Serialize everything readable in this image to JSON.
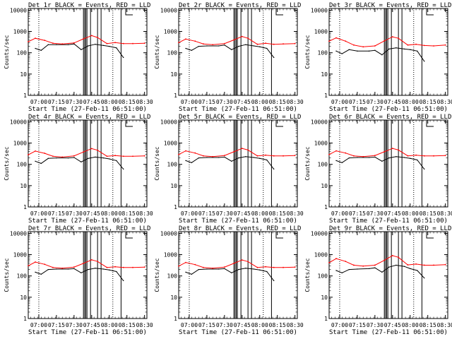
{
  "shared": {
    "xtick_labels": [
      "07:00",
      "07:15",
      "07:30",
      "07:45",
      "08:00",
      "08:15",
      "08:30"
    ],
    "ytick_labels": [
      "1",
      "10",
      "100",
      "1000",
      "10000"
    ],
    "ylabel": "Counts/sec",
    "xlabel": "Start Time (27-Feb-11 06:51:00)"
  },
  "chart_data": [
    {
      "type": "line",
      "title": "Det 1r BLACK = Events, RED = LLD",
      "xlabel": "Start Time (27-Feb-11 06:51:00)",
      "ylabel": "Counts/sec",
      "yscale": "log",
      "ylim": [
        1,
        12000
      ],
      "xlim": [
        "06:51",
        "08:32"
      ],
      "series": [
        {
          "name": "Events",
          "color": "#000000",
          "x": [
            "06:57",
            "07:02",
            "07:08",
            "07:15",
            "07:25",
            "07:30",
            "07:36",
            "07:42",
            "07:48",
            "07:55",
            "08:00",
            "08:06",
            "08:12"
          ],
          "values": [
            160,
            130,
            240,
            240,
            240,
            260,
            140,
            210,
            250,
            220,
            200,
            170,
            60
          ]
        },
        {
          "name": "LLD",
          "color": "#ff0000",
          "x": [
            "06:51",
            "06:57",
            "07:05",
            "07:12",
            "07:20",
            "07:30",
            "07:38",
            "07:45",
            "07:50",
            "07:58",
            "08:05",
            "08:12",
            "08:20",
            "08:30"
          ],
          "values": [
            330,
            480,
            380,
            280,
            260,
            290,
            450,
            640,
            520,
            270,
            300,
            270,
            270,
            280
          ]
        }
      ],
      "vlines_dotted": [
        "07:00",
        "08:03"
      ],
      "vlines_solid": [
        "07:38",
        "07:39",
        "07:40",
        "07:41",
        "07:44",
        "07:50",
        "07:53",
        "08:10"
      ]
    },
    {
      "type": "line",
      "title": "Det 2r BLACK = Events, RED = LLD",
      "xlabel": "Start Time (27-Feb-11 06:51:00)",
      "ylabel": "Counts/sec",
      "yscale": "log",
      "ylim": [
        1,
        12000
      ],
      "xlim": [
        "06:51",
        "08:32"
      ],
      "series": [
        {
          "name": "Events",
          "color": "#000000",
          "x": [
            "06:57",
            "07:02",
            "07:08",
            "07:15",
            "07:25",
            "07:30",
            "07:36",
            "07:42",
            "07:48",
            "07:55",
            "08:00",
            "08:06",
            "08:12"
          ],
          "values": [
            160,
            130,
            200,
            210,
            210,
            230,
            140,
            200,
            240,
            210,
            190,
            160,
            60
          ]
        },
        {
          "name": "LLD",
          "color": "#ff0000",
          "x": [
            "06:51",
            "06:57",
            "07:05",
            "07:12",
            "07:20",
            "07:30",
            "07:38",
            "07:45",
            "07:50",
            "07:58",
            "08:05",
            "08:12",
            "08:20",
            "08:30"
          ],
          "values": [
            300,
            440,
            350,
            260,
            240,
            270,
            400,
            580,
            480,
            250,
            280,
            250,
            260,
            270
          ]
        }
      ],
      "vlines_dotted": [
        "07:00",
        "08:03"
      ],
      "vlines_solid": [
        "07:38",
        "07:39",
        "07:40",
        "07:41",
        "07:44",
        "07:50",
        "07:53",
        "08:10"
      ]
    },
    {
      "type": "line",
      "title": "Det 3r BLACK = Events, RED = LLD",
      "xlabel": "Start Time (27-Feb-11 06:51:00)",
      "ylabel": "Counts/sec",
      "yscale": "log",
      "ylim": [
        1,
        12000
      ],
      "xlim": [
        "06:51",
        "08:32"
      ],
      "series": [
        {
          "name": "Events",
          "color": "#000000",
          "x": [
            "06:57",
            "07:02",
            "07:08",
            "07:15",
            "07:25",
            "07:30",
            "07:36",
            "07:42",
            "07:48",
            "07:55",
            "08:00",
            "08:06",
            "08:12"
          ],
          "values": [
            120,
            90,
            140,
            120,
            120,
            130,
            80,
            150,
            170,
            150,
            140,
            120,
            40
          ]
        },
        {
          "name": "LLD",
          "color": "#ff0000",
          "x": [
            "06:51",
            "06:57",
            "07:05",
            "07:12",
            "07:20",
            "07:30",
            "07:38",
            "07:45",
            "07:50",
            "07:58",
            "08:05",
            "08:12",
            "08:20",
            "08:30"
          ],
          "values": [
            350,
            500,
            350,
            230,
            190,
            210,
            360,
            560,
            480,
            230,
            250,
            220,
            210,
            230
          ]
        }
      ],
      "vlines_dotted": [
        "07:00",
        "08:03"
      ],
      "vlines_solid": [
        "07:38",
        "07:39",
        "07:40",
        "07:41",
        "07:44",
        "07:50",
        "07:53",
        "08:10"
      ]
    },
    {
      "type": "line",
      "title": "Det 4r BLACK = Events, RED = LLD",
      "xlabel": "Start Time (27-Feb-11 06:51:00)",
      "ylabel": "Counts/sec",
      "yscale": "log",
      "ylim": [
        1,
        12000
      ],
      "xlim": [
        "06:51",
        "08:32"
      ],
      "series": [
        {
          "name": "Events",
          "color": "#000000",
          "x": [
            "06:57",
            "07:02",
            "07:08",
            "07:15",
            "07:25",
            "07:30",
            "07:36",
            "07:42",
            "07:48",
            "07:55",
            "08:00",
            "08:06",
            "08:12"
          ],
          "values": [
            140,
            110,
            190,
            200,
            200,
            210,
            130,
            190,
            220,
            200,
            180,
            150,
            60
          ]
        },
        {
          "name": "LLD",
          "color": "#ff0000",
          "x": [
            "06:51",
            "06:57",
            "07:05",
            "07:12",
            "07:20",
            "07:30",
            "07:38",
            "07:45",
            "07:50",
            "07:58",
            "08:05",
            "08:12",
            "08:20",
            "08:30"
          ],
          "values": [
            280,
            420,
            330,
            240,
            220,
            250,
            380,
            550,
            460,
            240,
            260,
            240,
            240,
            250
          ]
        }
      ],
      "vlines_dotted": [
        "07:00",
        "08:03"
      ],
      "vlines_solid": [
        "07:38",
        "07:39",
        "07:40",
        "07:41",
        "07:44",
        "07:50",
        "07:53",
        "08:10"
      ]
    },
    {
      "type": "line",
      "title": "Det 5r BLACK = Events, RED = LLD",
      "xlabel": "Start Time (27-Feb-11 06:51:00)",
      "ylabel": "Counts/sec",
      "yscale": "log",
      "ylim": [
        1,
        12000
      ],
      "xlim": [
        "06:51",
        "08:32"
      ],
      "series": [
        {
          "name": "Events",
          "color": "#000000",
          "x": [
            "06:57",
            "07:02",
            "07:08",
            "07:15",
            "07:25",
            "07:30",
            "07:36",
            "07:42",
            "07:48",
            "07:55",
            "08:00",
            "08:06",
            "08:12"
          ],
          "values": [
            150,
            120,
            200,
            210,
            210,
            220,
            140,
            200,
            230,
            210,
            190,
            160,
            60
          ]
        },
        {
          "name": "LLD",
          "color": "#ff0000",
          "x": [
            "06:51",
            "06:57",
            "07:05",
            "07:12",
            "07:20",
            "07:30",
            "07:38",
            "07:45",
            "07:50",
            "07:58",
            "08:05",
            "08:12",
            "08:20",
            "08:30"
          ],
          "values": [
            290,
            430,
            340,
            250,
            230,
            260,
            390,
            560,
            470,
            250,
            270,
            250,
            250,
            260
          ]
        }
      ],
      "vlines_dotted": [
        "07:00",
        "08:03"
      ],
      "vlines_solid": [
        "07:38",
        "07:39",
        "07:40",
        "07:41",
        "07:44",
        "07:50",
        "07:53",
        "08:10"
      ]
    },
    {
      "type": "line",
      "title": "Det 6r BLACK = Events, RED = LLD",
      "xlabel": "Start Time (27-Feb-11 06:51:00)",
      "ylabel": "Counts/sec",
      "yscale": "log",
      "ylim": [
        1,
        12000
      ],
      "xlim": [
        "06:51",
        "08:32"
      ],
      "series": [
        {
          "name": "Events",
          "color": "#000000",
          "x": [
            "06:57",
            "07:02",
            "07:08",
            "07:15",
            "07:25",
            "07:30",
            "07:36",
            "07:42",
            "07:48",
            "07:55",
            "08:00",
            "08:06",
            "08:12"
          ],
          "values": [
            150,
            120,
            200,
            210,
            210,
            220,
            140,
            200,
            230,
            210,
            190,
            160,
            60
          ]
        },
        {
          "name": "LLD",
          "color": "#ff0000",
          "x": [
            "06:51",
            "06:57",
            "07:05",
            "07:12",
            "07:20",
            "07:30",
            "07:38",
            "07:45",
            "07:50",
            "07:58",
            "08:05",
            "08:12",
            "08:20",
            "08:30"
          ],
          "values": [
            290,
            430,
            340,
            250,
            230,
            260,
            390,
            560,
            470,
            250,
            270,
            250,
            250,
            260
          ]
        }
      ],
      "vlines_dotted": [
        "07:00",
        "08:03"
      ],
      "vlines_solid": [
        "07:38",
        "07:39",
        "07:40",
        "07:41",
        "07:44",
        "07:50",
        "07:53",
        "08:10"
      ]
    },
    {
      "type": "line",
      "title": "Det 7r BLACK = Events, RED = LLD",
      "xlabel": "Start Time (27-Feb-11 06:51:00)",
      "ylabel": "Counts/sec",
      "yscale": "log",
      "ylim": [
        1,
        12000
      ],
      "xlim": [
        "06:51",
        "08:32"
      ],
      "series": [
        {
          "name": "Events",
          "color": "#000000",
          "x": [
            "06:57",
            "07:02",
            "07:08",
            "07:15",
            "07:25",
            "07:30",
            "07:36",
            "07:42",
            "07:48",
            "07:55",
            "08:00",
            "08:06",
            "08:12"
          ],
          "values": [
            150,
            120,
            200,
            210,
            210,
            220,
            140,
            200,
            230,
            210,
            190,
            160,
            60
          ]
        },
        {
          "name": "LLD",
          "color": "#ff0000",
          "x": [
            "06:51",
            "06:57",
            "07:05",
            "07:12",
            "07:20",
            "07:30",
            "07:38",
            "07:45",
            "07:50",
            "07:58",
            "08:05",
            "08:12",
            "08:20",
            "08:30"
          ],
          "values": [
            300,
            450,
            350,
            250,
            230,
            260,
            390,
            570,
            480,
            250,
            270,
            250,
            250,
            260
          ]
        }
      ],
      "vlines_dotted": [
        "07:00",
        "08:03"
      ],
      "vlines_solid": [
        "07:38",
        "07:39",
        "07:40",
        "07:41",
        "07:44",
        "07:50",
        "07:53",
        "08:10"
      ]
    },
    {
      "type": "line",
      "title": "Det 8r BLACK = Events, RED = LLD",
      "xlabel": "Start Time (27-Feb-11 06:51:00)",
      "ylabel": "Counts/sec",
      "yscale": "log",
      "ylim": [
        1,
        12000
      ],
      "xlim": [
        "06:51",
        "08:32"
      ],
      "series": [
        {
          "name": "Events",
          "color": "#000000",
          "x": [
            "06:57",
            "07:02",
            "07:08",
            "07:15",
            "07:25",
            "07:30",
            "07:36",
            "07:42",
            "07:48",
            "07:55",
            "08:00",
            "08:06",
            "08:12"
          ],
          "values": [
            150,
            120,
            200,
            210,
            210,
            220,
            140,
            200,
            230,
            210,
            190,
            160,
            60
          ]
        },
        {
          "name": "LLD",
          "color": "#ff0000",
          "x": [
            "06:51",
            "06:57",
            "07:05",
            "07:12",
            "07:20",
            "07:30",
            "07:38",
            "07:45",
            "07:50",
            "07:58",
            "08:05",
            "08:12",
            "08:20",
            "08:30"
          ],
          "values": [
            290,
            430,
            340,
            250,
            230,
            260,
            390,
            560,
            470,
            250,
            270,
            250,
            250,
            260
          ]
        }
      ],
      "vlines_dotted": [
        "07:00",
        "08:03"
      ],
      "vlines_solid": [
        "07:38",
        "07:39",
        "07:40",
        "07:41",
        "07:44",
        "07:50",
        "07:53",
        "08:10"
      ]
    },
    {
      "type": "line",
      "title": "Det 9r BLACK = Events, RED = LLD",
      "xlabel": "Start Time (27-Feb-11 06:51:00)",
      "ylabel": "Counts/sec",
      "yscale": "log",
      "ylim": [
        1,
        12000
      ],
      "xlim": [
        "06:51",
        "08:32"
      ],
      "series": [
        {
          "name": "Events",
          "color": "#000000",
          "x": [
            "06:57",
            "07:02",
            "07:08",
            "07:15",
            "07:25",
            "07:30",
            "07:36",
            "07:42",
            "07:48",
            "07:55",
            "08:00",
            "08:06",
            "08:12"
          ],
          "values": [
            180,
            140,
            200,
            210,
            220,
            240,
            150,
            260,
            320,
            280,
            220,
            180,
            80
          ]
        },
        {
          "name": "LLD",
          "color": "#ff0000",
          "x": [
            "06:51",
            "06:57",
            "07:05",
            "07:12",
            "07:20",
            "07:30",
            "07:38",
            "07:45",
            "07:50",
            "07:58",
            "08:05",
            "08:12",
            "08:20",
            "08:30"
          ],
          "values": [
            420,
            650,
            480,
            320,
            290,
            320,
            540,
            900,
            750,
            330,
            360,
            320,
            320,
            340
          ]
        }
      ],
      "vlines_dotted": [
        "07:00",
        "08:03"
      ],
      "vlines_solid": [
        "07:38",
        "07:39",
        "07:40",
        "07:41",
        "07:44",
        "07:50",
        "07:53",
        "08:10"
      ]
    }
  ]
}
